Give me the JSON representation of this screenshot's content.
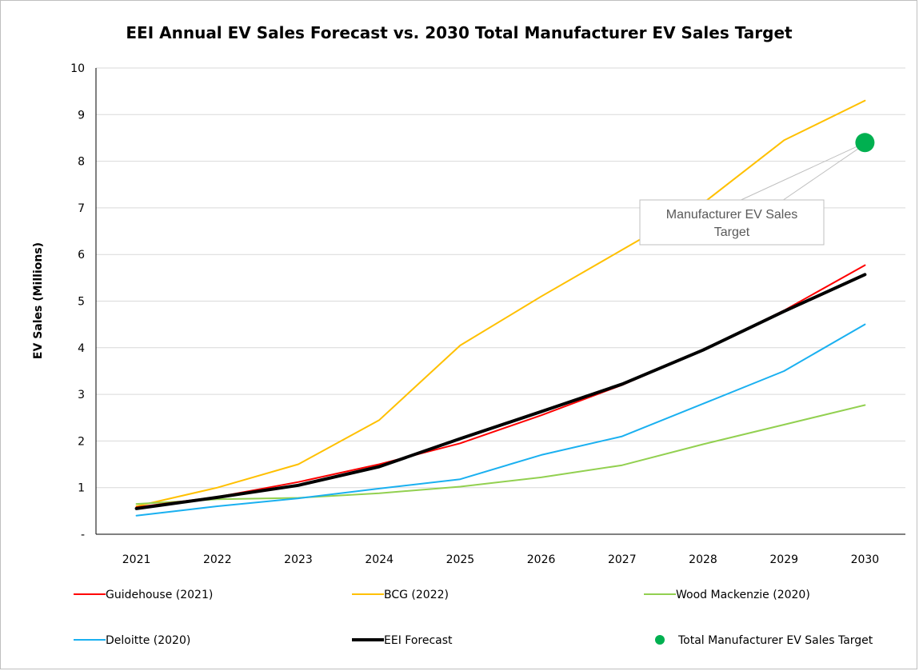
{
  "chart_data": {
    "type": "line",
    "title": "EEI Annual EV Sales Forecast vs. 2030 Total Manufacturer EV Sales Target",
    "xlabel": "",
    "ylabel": "EV Sales (Millions)",
    "ylim": [
      0,
      10
    ],
    "yticks": [
      0,
      1,
      2,
      3,
      4,
      5,
      6,
      7,
      8,
      9,
      10
    ],
    "ytick_labels": [
      "-",
      "1",
      "2",
      "3",
      "4",
      "5",
      "6",
      "7",
      "8",
      "9",
      "10"
    ],
    "categories": [
      "2021",
      "2022",
      "2023",
      "2024",
      "2025",
      "2026",
      "2027",
      "2028",
      "2029",
      "2030"
    ],
    "grid": "horizontal",
    "legend_position": "bottom",
    "series": [
      {
        "name": "BCG (2022)",
        "color": "#FFC000",
        "width": 2,
        "values": [
          0.6,
          1.0,
          1.5,
          2.45,
          4.05,
          5.1,
          6.1,
          7.1,
          8.45,
          9.3
        ]
      },
      {
        "name": "Wood Mackenzie (2020)",
        "color": "#92D050",
        "width": 2,
        "values": [
          0.65,
          0.75,
          0.78,
          0.88,
          1.02,
          1.22,
          1.48,
          1.93,
          2.35,
          2.77
        ]
      },
      {
        "name": "Deloitte (2020)",
        "color": "#1AB0F0",
        "width": 2,
        "values": [
          0.4,
          0.6,
          0.77,
          0.98,
          1.18,
          1.7,
          2.1,
          2.8,
          3.5,
          4.5
        ]
      },
      {
        "name": "Guidehouse (2021)",
        "color": "#FF0000",
        "width": 2,
        "values": [
          0.58,
          0.8,
          1.12,
          1.5,
          1.95,
          2.55,
          3.2,
          3.95,
          4.8,
          5.77
        ]
      },
      {
        "name": "EEI Forecast",
        "color": "#000000",
        "width": 4,
        "values": [
          0.55,
          0.79,
          1.05,
          1.45,
          2.05,
          2.63,
          3.22,
          3.95,
          4.78,
          5.57
        ]
      }
    ],
    "points": [
      {
        "name": "Total Manufacturer EV Sales Target",
        "color": "#00B050",
        "x": "2030",
        "y": 8.4
      }
    ],
    "annotations": [
      {
        "text_lines": [
          "Manufacturer EV Sales",
          "Target"
        ],
        "points_to": "Total Manufacturer EV Sales Target"
      }
    ],
    "legend": [
      {
        "label": "Guidehouse (2021)",
        "color": "#FF0000",
        "kind": "line"
      },
      {
        "label": "BCG (2022)",
        "color": "#FFC000",
        "kind": "line"
      },
      {
        "label": "Wood Mackenzie (2020)",
        "color": "#92D050",
        "kind": "line"
      },
      {
        "label": "Deloitte (2020)",
        "color": "#1AB0F0",
        "kind": "line"
      },
      {
        "label": "EEI Forecast",
        "color": "#000000",
        "kind": "thick-line"
      },
      {
        "label": "Total Manufacturer EV Sales Target",
        "color": "#00B050",
        "kind": "dot"
      }
    ]
  }
}
